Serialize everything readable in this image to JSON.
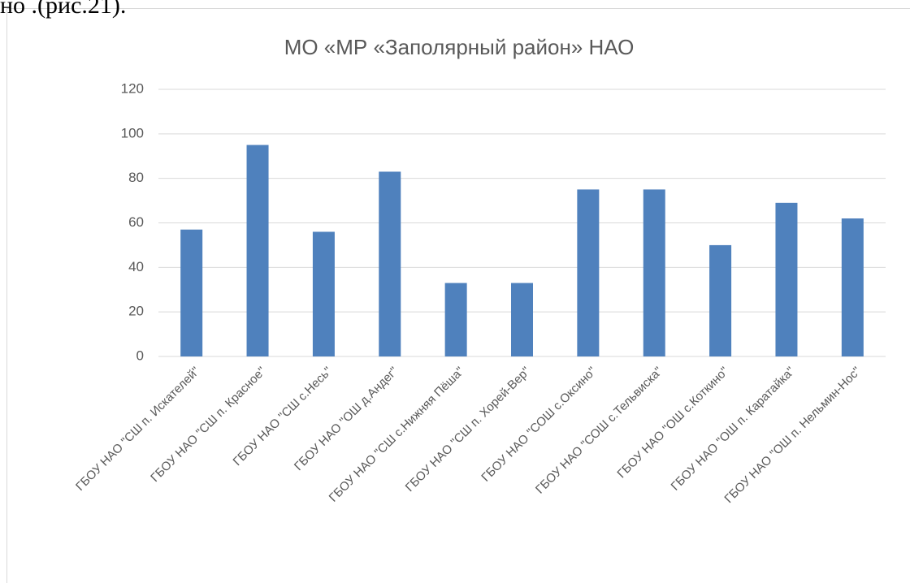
{
  "document_text": "но .(рис.21).",
  "chart_data": {
    "type": "bar",
    "title": "МО «МР «Заполярный район» НАО",
    "categories": [
      "ГБОУ НАО \"СШ п. Искателей\"",
      "ГБОУ НАО \"СШ п. Красное\"",
      "ГБОУ НАО \"СШ с.Несь\"",
      "ГБОУ НАО \"ОШ д.Андег\"",
      "ГБОУ НАО \"СШ с.Нижняя Пёша\"",
      "ГБОУ НАО \"СШ п. Хорей-Вер\"",
      "ГБОУ НАО \"СОШ с.Оксино\"",
      "ГБОУ НАО \"СОШ с.Тельвиска\"",
      "ГБОУ НАО \"ОШ с.Коткино\"",
      "ГБОУ НАО \"ОШ п. Каратайка\"",
      "ГБОУ НАО \"ОШ п. Нельмин-Нос\""
    ],
    "values": [
      57,
      95,
      56,
      83,
      33,
      33,
      75,
      75,
      50,
      69,
      62
    ],
    "color": "#4f81bd",
    "ylim": [
      0,
      120
    ],
    "yticks": [
      0,
      20,
      40,
      60,
      80,
      100,
      120
    ],
    "grid": true
  }
}
